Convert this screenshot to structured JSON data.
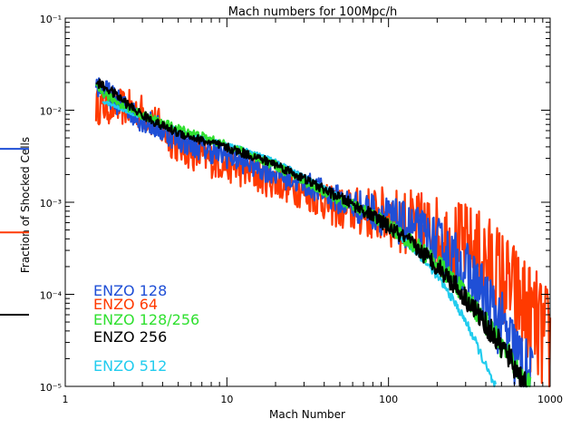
{
  "chart_data": {
    "type": "line",
    "title": "Mach numbers for 100Mpc/h",
    "xlabel": "Mach Number",
    "ylabel": "Fraction of Shocked Cells",
    "xscale": "log",
    "yscale": "log",
    "xlim": [
      1,
      1000
    ],
    "ylim": [
      1e-05,
      0.1
    ],
    "x_tick_labels": [
      "1",
      "10",
      "100",
      "1000"
    ],
    "y_tick_labels": [
      "10⁻⁵",
      "10⁻⁴",
      "10⁻³",
      "10⁻²",
      "10⁻¹"
    ],
    "grid": false,
    "legend_placement": "bottom-left",
    "series": [
      {
        "name": "ENZO 128",
        "color": "#1f4fd6",
        "points": [
          [
            1.55,
            0.0195
          ],
          [
            1.8,
            0.0155
          ],
          [
            2.2,
            0.0115
          ],
          [
            2.8,
            0.0085
          ],
          [
            3.5,
            0.0068
          ],
          [
            4.5,
            0.0054
          ],
          [
            5.5,
            0.0045
          ],
          [
            7,
            0.0039
          ],
          [
            9,
            0.0034
          ],
          [
            12,
            0.0029
          ],
          [
            16,
            0.0024
          ],
          [
            22,
            0.00195
          ],
          [
            30,
            0.0016
          ],
          [
            40,
            0.00128
          ],
          [
            50,
            0.00105
          ],
          [
            60,
            0.00093
          ],
          [
            80,
            0.0008
          ],
          [
            100,
            0.00068
          ],
          [
            130,
            0.00055
          ],
          [
            160,
            0.00045
          ],
          [
            200,
            0.00035
          ],
          [
            260,
            0.00023
          ],
          [
            330,
            0.000145
          ],
          [
            420,
            7.75e-05
          ],
          [
            520,
            3.9e-05
          ],
          [
            620,
            2.1e-05
          ],
          [
            700,
            1.35e-05
          ],
          [
            780,
            1e-05
          ]
        ],
        "noise": 0.14
      },
      {
        "name": "ENZO 64",
        "color": "#ff3a00",
        "points": [
          [
            1.55,
            0.011
          ],
          [
            2,
            0.011
          ],
          [
            2.5,
            0.0105
          ],
          [
            3,
            0.0095
          ],
          [
            3.5,
            0.0078
          ],
          [
            4,
            0.006
          ],
          [
            4.5,
            0.0048
          ],
          [
            5,
            0.0042
          ],
          [
            5.5,
            0.0038
          ],
          [
            6.5,
            0.0033
          ],
          [
            8,
            0.0029
          ],
          [
            10,
            0.0026
          ],
          [
            13,
            0.0022
          ],
          [
            18,
            0.0018
          ],
          [
            25,
            0.0015
          ],
          [
            35,
            0.00115
          ],
          [
            45,
            0.0009
          ],
          [
            55,
            0.00082
          ],
          [
            70,
            0.00078
          ],
          [
            90,
            0.00072
          ],
          [
            110,
            0.00065
          ],
          [
            140,
            0.00058
          ],
          [
            180,
            0.00049
          ],
          [
            230,
            0.0004
          ],
          [
            300,
            0.00033
          ],
          [
            400,
            0.00024
          ],
          [
            500,
            0.000155
          ],
          [
            600,
            0.0001
          ],
          [
            700,
            7e-05
          ],
          [
            800,
            4.8e-05
          ],
          [
            900,
            3.5e-05
          ],
          [
            1000,
            2.8e-05
          ]
        ],
        "noise": 0.2
      },
      {
        "name": "ENZO 128/256",
        "color": "#30e030",
        "points": [
          [
            1.55,
            0.0172
          ],
          [
            2,
            0.0129
          ],
          [
            3,
            0.0089
          ],
          [
            4,
            0.0072
          ],
          [
            5,
            0.0063
          ],
          [
            7,
            0.0052
          ],
          [
            10,
            0.0041
          ],
          [
            15,
            0.0031
          ],
          [
            20,
            0.0025
          ],
          [
            30,
            0.0017
          ],
          [
            40,
            0.0013
          ],
          [
            50,
            0.00105
          ],
          [
            60,
            0.00092
          ],
          [
            80,
            0.00072
          ],
          [
            100,
            0.00056
          ],
          [
            140,
            0.00036
          ],
          [
            200,
            0.00022
          ],
          [
            260,
            0.000132
          ],
          [
            330,
            7.7e-05
          ],
          [
            420,
            4.35e-05
          ],
          [
            520,
            2.5e-05
          ],
          [
            620,
            1.55e-05
          ],
          [
            720,
            1.05e-05
          ],
          [
            760,
            1e-05
          ]
        ],
        "noise": 0.05
      },
      {
        "name": "ENZO 256",
        "color": "#000000",
        "points": [
          [
            1.55,
            0.0205
          ],
          [
            2,
            0.0153
          ],
          [
            2.5,
            0.0111
          ],
          [
            3,
            0.0089
          ],
          [
            4,
            0.0067
          ],
          [
            5,
            0.0057
          ],
          [
            7,
            0.0047
          ],
          [
            10,
            0.0039
          ],
          [
            15,
            0.0031
          ],
          [
            20,
            0.0026
          ],
          [
            30,
            0.0018
          ],
          [
            40,
            0.00138
          ],
          [
            50,
            0.00112
          ],
          [
            60,
            0.00095
          ],
          [
            80,
            0.00071
          ],
          [
            100,
            0.00054
          ],
          [
            140,
            0.00035
          ],
          [
            200,
            0.000205
          ],
          [
            260,
            0.000125
          ],
          [
            330,
            7.4e-05
          ],
          [
            420,
            4.2e-05
          ],
          [
            520,
            2.45e-05
          ],
          [
            620,
            1.52e-05
          ],
          [
            700,
            1.05e-05
          ],
          [
            720,
            1e-05
          ]
        ],
        "noise": 0.05
      },
      {
        "name": "ENZO 512",
        "color": "#22ccee",
        "points": [
          [
            1.7,
            0.0125
          ],
          [
            2.5,
            0.0095
          ],
          [
            3.5,
            0.0075
          ],
          [
            5,
            0.0061
          ],
          [
            7,
            0.0051
          ],
          [
            10,
            0.0043
          ],
          [
            15,
            0.0034
          ],
          [
            20,
            0.0028
          ],
          [
            30,
            0.0019
          ],
          [
            40,
            0.00145
          ],
          [
            50,
            0.00113
          ],
          [
            70,
            0.00081
          ],
          [
            90,
            0.00061
          ],
          [
            120,
            0.00041
          ],
          [
            160,
            0.00025
          ],
          [
            200,
            0.000158
          ],
          [
            250,
            8.8e-05
          ],
          [
            300,
            5.1e-05
          ],
          [
            350,
            2.9e-05
          ],
          [
            400,
            1.65e-05
          ],
          [
            450,
            1.02e-05
          ],
          [
            460,
            1e-05
          ]
        ],
        "noise": 0.02
      }
    ],
    "side_markers": [
      {
        "name": "ENZO 128",
        "color": "#1f4fd6",
        "y": 0.0038
      },
      {
        "name": "ENZO 64",
        "color": "#ff3a00",
        "y": 0.00047
      },
      {
        "name": "ENZO 256",
        "color": "#000000",
        "y": 6e-05
      }
    ]
  }
}
